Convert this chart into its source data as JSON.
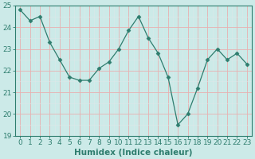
{
  "x": [
    0,
    1,
    2,
    3,
    4,
    5,
    6,
    7,
    8,
    9,
    10,
    11,
    12,
    13,
    14,
    15,
    16,
    17,
    18,
    19,
    20,
    21,
    22,
    23
  ],
  "y": [
    24.8,
    24.3,
    24.5,
    23.3,
    22.5,
    21.7,
    21.55,
    21.55,
    22.1,
    22.4,
    23.0,
    23.85,
    24.5,
    23.5,
    22.8,
    21.7,
    19.5,
    20.0,
    21.2,
    22.5,
    23.0,
    22.5,
    22.8,
    22.3
  ],
  "xlabel": "Humidex (Indice chaleur)",
  "ylim": [
    19,
    25
  ],
  "xlim": [
    -0.5,
    23.5
  ],
  "yticks": [
    19,
    20,
    21,
    22,
    23,
    24,
    25
  ],
  "xticks": [
    0,
    1,
    2,
    3,
    4,
    5,
    6,
    7,
    8,
    9,
    10,
    11,
    12,
    13,
    14,
    15,
    16,
    17,
    18,
    19,
    20,
    21,
    22,
    23
  ],
  "line_color": "#2e7d6e",
  "marker": "D",
  "marker_size": 2.5,
  "bg_color": "#cceae8",
  "grid_major_color": "#e8b0b0",
  "grid_minor_color": "#dde8e8",
  "axes_color": "#2e7d6e",
  "xlabel_fontsize": 7.5,
  "tick_fontsize": 6.5,
  "line_width": 0.9
}
